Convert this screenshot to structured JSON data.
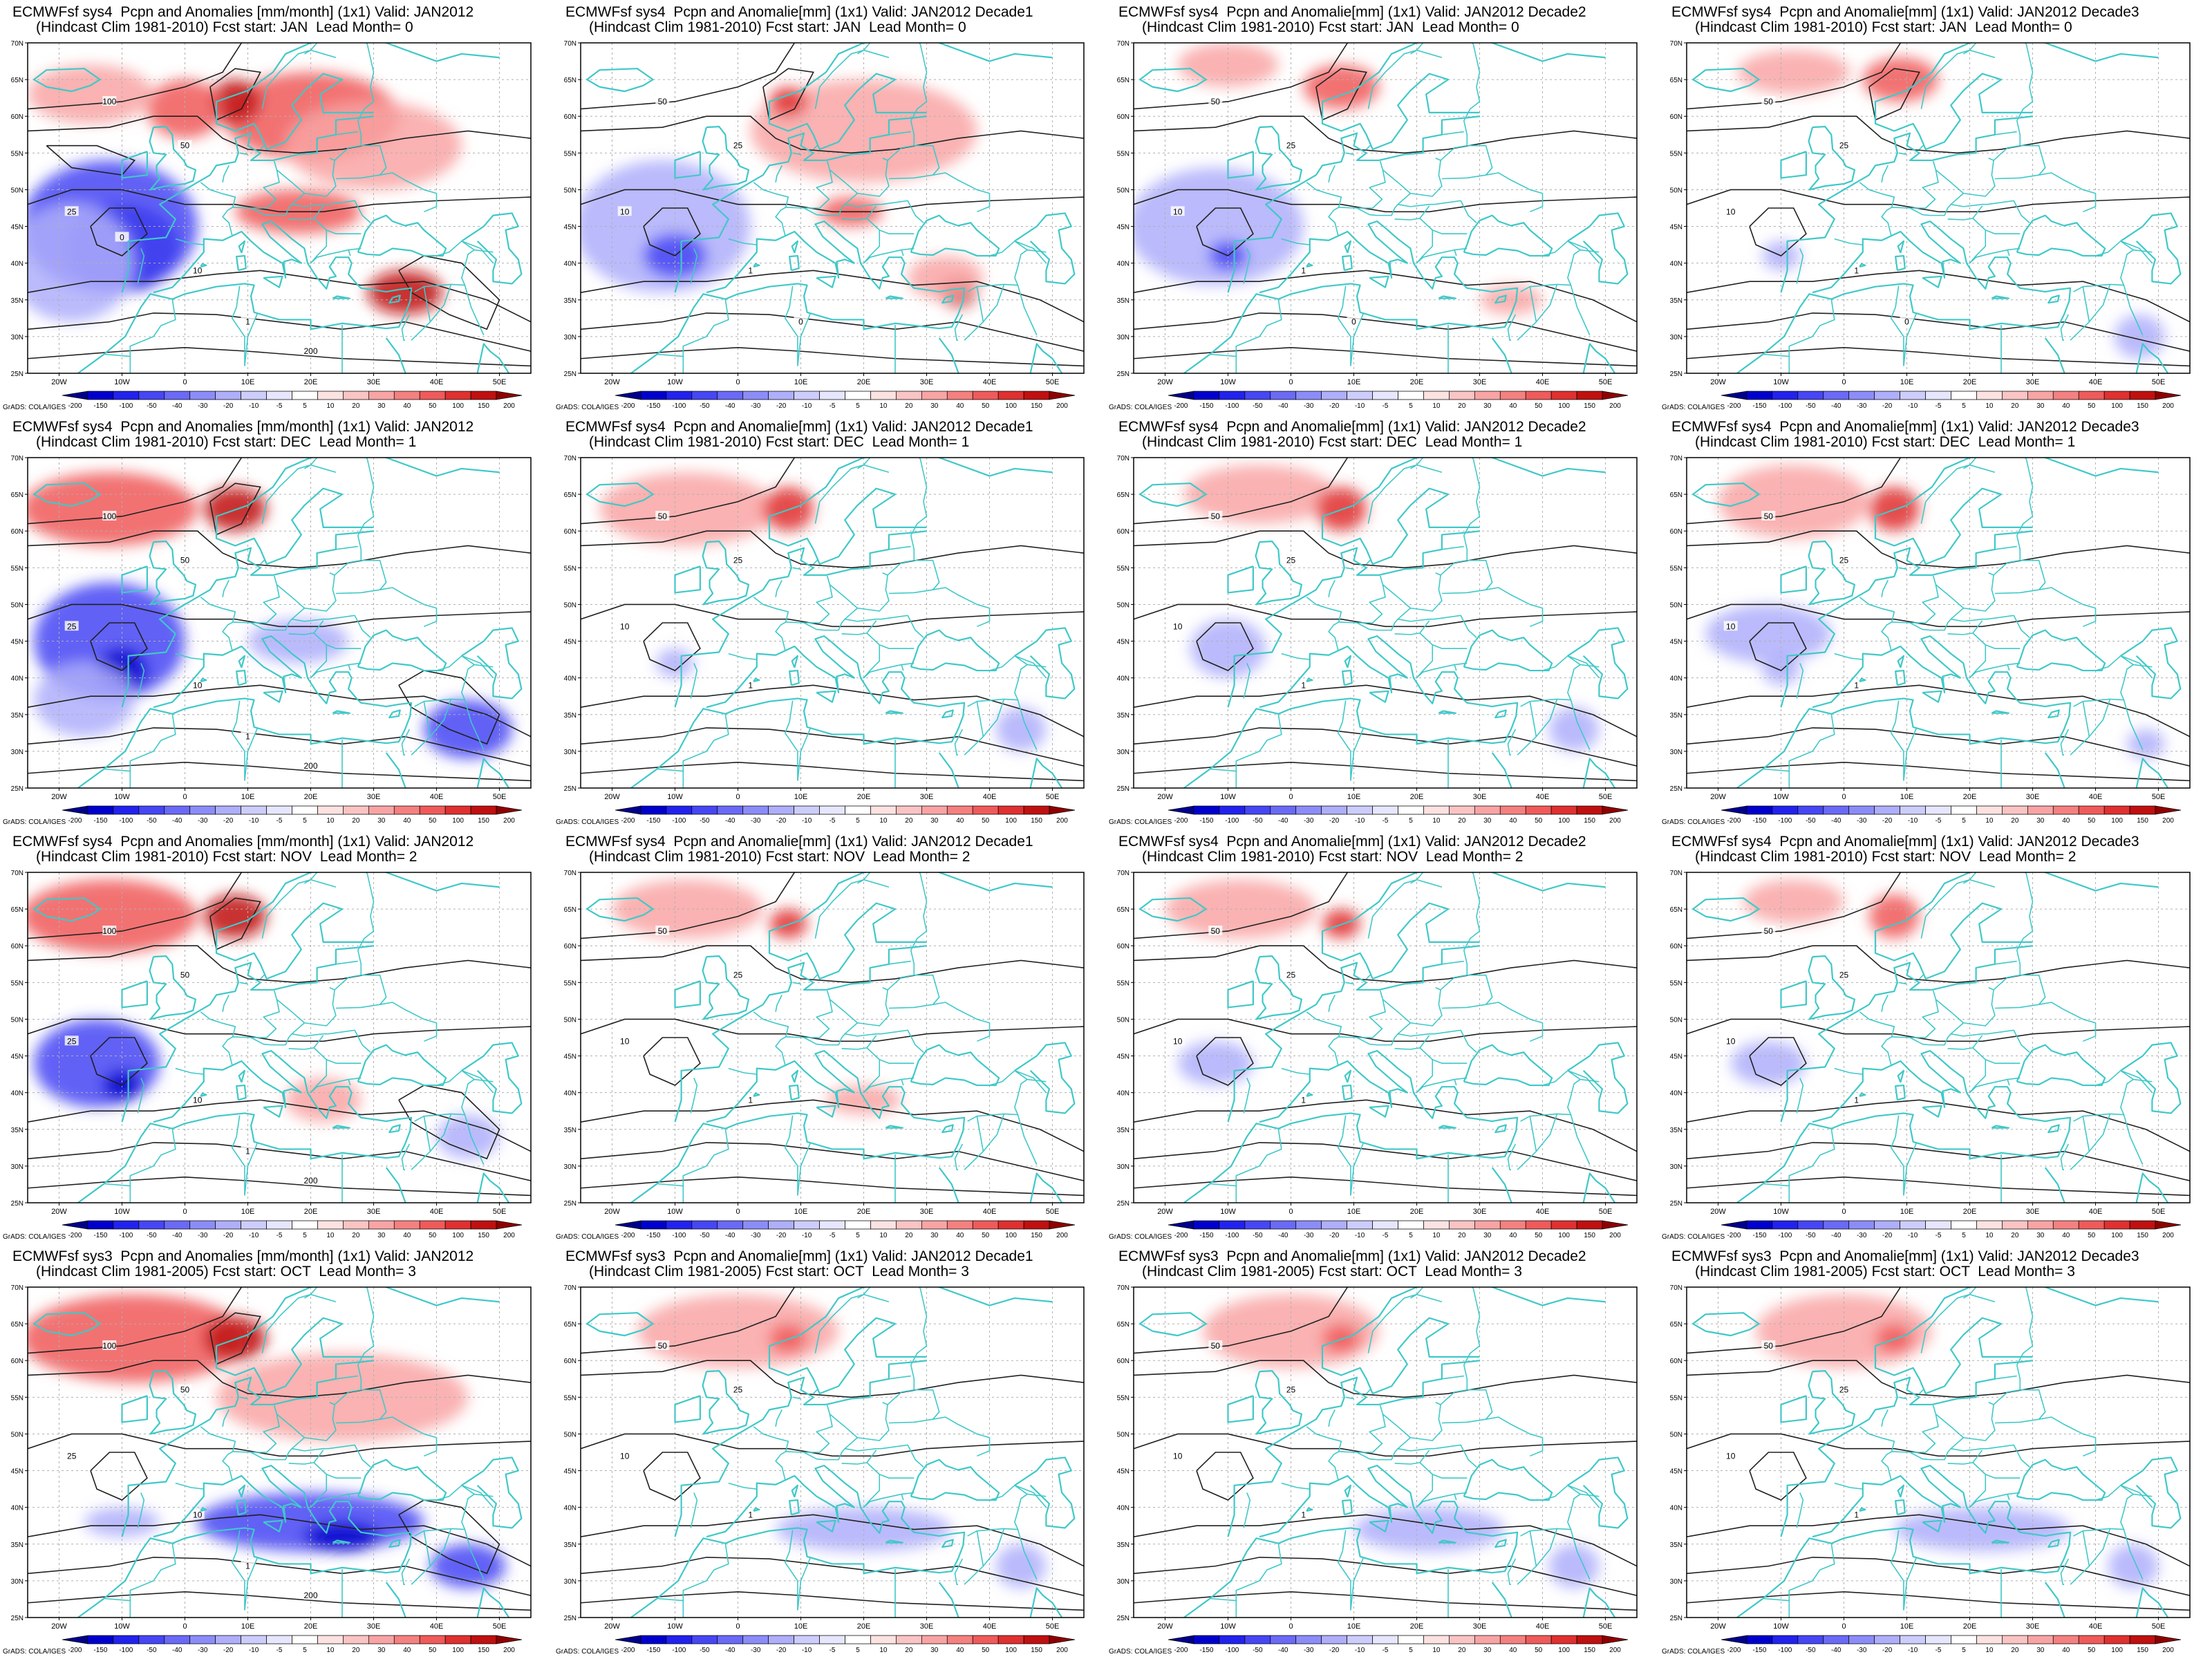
{
  "colorbar": {
    "labels": [
      "-200",
      "-150",
      "-100",
      "-50",
      "-40",
      "-30",
      "-20",
      "-10",
      "-5",
      "5",
      "10",
      "20",
      "30",
      "40",
      "50",
      "100",
      "150",
      "200"
    ],
    "colors": [
      "#00008b",
      "#0000cd",
      "#2222ee",
      "#4646f5",
      "#6a6af7",
      "#8c8cf9",
      "#aeaefb",
      "#cdcdfd",
      "#e6e6fe",
      "#ffffff",
      "#fde2e2",
      "#fbc4c4",
      "#f9a4a4",
      "#f58080",
      "#f05a5a",
      "#e03030",
      "#c01010",
      "#900000"
    ],
    "credit": "GrADS: COLA/IGES"
  },
  "map": {
    "lat_labels": [
      "70N",
      "65N",
      "60N",
      "55N",
      "50N",
      "45N",
      "40N",
      "35N",
      "30N",
      "25N"
    ],
    "lon_labels": [
      "20W",
      "10W",
      "0",
      "10E",
      "20E",
      "30E",
      "40E",
      "50E"
    ],
    "coast_color": "#40c8c8",
    "contour_color": "#202020"
  },
  "panels": [
    {
      "row": 0,
      "col": 0,
      "title1": "ECMWFsf sys4  Pcpn and Anomalies [mm/month] (1x1) Valid: JAN2012",
      "title2": "(Hindcast Clim 1981-2010) Fcst start: JAN  Lead Month= 0",
      "contour_labels": [
        "100",
        "50",
        "25",
        "10",
        "1",
        "200",
        "0"
      ],
      "blobs": [
        {
          "x": -10,
          "y": 42,
          "rx": 9,
          "ry": 6,
          "v": -3
        },
        {
          "x": -12,
          "y": 45,
          "rx": 14,
          "ry": 9,
          "v": -2
        },
        {
          "x": -18,
          "y": 40,
          "rx": 10,
          "ry": 8,
          "v": -1
        },
        {
          "x": 20,
          "y": 60,
          "rx": 14,
          "ry": 6,
          "v": 2
        },
        {
          "x": 8,
          "y": 62,
          "rx": 4,
          "ry": 3,
          "v": 4
        },
        {
          "x": 35,
          "y": 36,
          "rx": 6,
          "ry": 3,
          "v": 4
        },
        {
          "x": 18,
          "y": 47,
          "rx": 10,
          "ry": 3,
          "v": 2
        },
        {
          "x": 0,
          "y": 61,
          "rx": 6,
          "ry": 4,
          "v": 2
        },
        {
          "x": -15,
          "y": 63,
          "rx": 10,
          "ry": 4,
          "v": 1
        },
        {
          "x": 30,
          "y": 56,
          "rx": 14,
          "ry": 6,
          "v": 1
        }
      ]
    },
    {
      "row": 0,
      "col": 1,
      "title1": "ECMWFsf sys4  Pcpn and Anomalie[mm] (1x1) Valid: JAN2012 Decade1",
      "title2": "(Hindcast Clim 1981-2010) Fcst start: JAN  Lead Month= 0",
      "contour_labels": [
        "50",
        "25",
        "10",
        "1",
        "0"
      ],
      "blobs": [
        {
          "x": -12,
          "y": 45,
          "rx": 14,
          "ry": 9,
          "v": -1
        },
        {
          "x": -10,
          "y": 41,
          "rx": 5,
          "ry": 3,
          "v": -2
        },
        {
          "x": 20,
          "y": 58,
          "rx": 18,
          "ry": 7,
          "v": 1
        },
        {
          "x": 8,
          "y": 62,
          "rx": 3,
          "ry": 2,
          "v": 3
        },
        {
          "x": 35,
          "y": 36,
          "rx": 3,
          "ry": 2,
          "v": 4
        },
        {
          "x": 33,
          "y": 38,
          "rx": 6,
          "ry": 3,
          "v": 1
        },
        {
          "x": 18,
          "y": 47,
          "rx": 5,
          "ry": 2,
          "v": 2
        }
      ]
    },
    {
      "row": 0,
      "col": 2,
      "title1": "ECMWFsf sys4  Pcpn and Anomalie[mm] (1x1) Valid: JAN2012 Decade2",
      "title2": "(Hindcast Clim 1981-2010) Fcst start: JAN  Lead Month= 0",
      "contour_labels": [
        "50",
        "25",
        "10",
        "1",
        "0"
      ],
      "blobs": [
        {
          "x": -12,
          "y": 45,
          "rx": 14,
          "ry": 8,
          "v": -1
        },
        {
          "x": -10,
          "y": 41,
          "rx": 3,
          "ry": 2,
          "v": -2
        },
        {
          "x": 8,
          "y": 64,
          "rx": 6,
          "ry": 3,
          "v": 2
        },
        {
          "x": 35,
          "y": 35,
          "rx": 5,
          "ry": 2,
          "v": 1
        },
        {
          "x": -10,
          "y": 67,
          "rx": 8,
          "ry": 3,
          "v": 1
        }
      ]
    },
    {
      "row": 0,
      "col": 3,
      "title1": "ECMWFsf sys4  Pcpn and Anomalie[mm] (1x1) Valid: JAN2012 Decade3",
      "title2": "(Hindcast Clim 1981-2010) Fcst start: JAN  Lead Month= 0",
      "contour_labels": [
        "50",
        "25",
        "10",
        "1",
        "0"
      ],
      "blobs": [
        {
          "x": -10,
          "y": 41,
          "rx": 3,
          "ry": 2,
          "v": -1
        },
        {
          "x": 9,
          "y": 65,
          "rx": 6,
          "ry": 3,
          "v": 2
        },
        {
          "x": -8,
          "y": 66,
          "rx": 9,
          "ry": 3,
          "v": 1
        },
        {
          "x": 47,
          "y": 30,
          "rx": 4,
          "ry": 3,
          "v": -1
        }
      ]
    },
    {
      "row": 1,
      "col": 0,
      "title1": "ECMWFsf sys4  Pcpn and Anomalies [mm/month] (1x1) Valid: JAN2012",
      "title2": "(Hindcast Clim 1981-2010) Fcst start: DEC  Lead Month= 1",
      "contour_labels": [
        "100",
        "50",
        "25",
        "10",
        "1",
        "200"
      ],
      "blobs": [
        {
          "x": -12,
          "y": 63,
          "rx": 14,
          "ry": 5,
          "v": 2
        },
        {
          "x": 8,
          "y": 63,
          "rx": 5,
          "ry": 3,
          "v": 4
        },
        {
          "x": -12,
          "y": 45,
          "rx": 12,
          "ry": 8,
          "v": -2
        },
        {
          "x": -10,
          "y": 41,
          "rx": 4,
          "ry": 3,
          "v": -3
        },
        {
          "x": 45,
          "y": 33,
          "rx": 7,
          "ry": 4,
          "v": -2
        },
        {
          "x": 18,
          "y": 45,
          "rx": 8,
          "ry": 3,
          "v": -1
        },
        {
          "x": -16,
          "y": 37,
          "rx": 8,
          "ry": 5,
          "v": -1
        }
      ]
    },
    {
      "row": 1,
      "col": 1,
      "title1": "ECMWFsf sys4  Pcpn and Anomalie[mm] (1x1) Valid: JAN2012 Decade1",
      "title2": "(Hindcast Clim 1981-2010) Fcst start: DEC  Lead Month= 1",
      "contour_labels": [
        "50",
        "25",
        "10",
        "1"
      ],
      "blobs": [
        {
          "x": -8,
          "y": 63,
          "rx": 14,
          "ry": 5,
          "v": 1
        },
        {
          "x": 8,
          "y": 63,
          "rx": 4,
          "ry": 3,
          "v": 3
        },
        {
          "x": -10,
          "y": 42,
          "rx": 3,
          "ry": 2,
          "v": -1
        },
        {
          "x": 45,
          "y": 33,
          "rx": 4,
          "ry": 3,
          "v": -1
        }
      ]
    },
    {
      "row": 1,
      "col": 2,
      "title1": "ECMWFsf sys4  Pcpn and Anomalie[mm] (1x1) Valid: JAN2012 Decade2",
      "title2": "(Hindcast Clim 1981-2010) Fcst start: DEC  Lead Month= 1",
      "contour_labels": [
        "50",
        "25",
        "10",
        "1"
      ],
      "blobs": [
        {
          "x": -5,
          "y": 65,
          "rx": 12,
          "ry": 4,
          "v": 1
        },
        {
          "x": 8,
          "y": 63,
          "rx": 4,
          "ry": 3,
          "v": 3
        },
        {
          "x": -10,
          "y": 44,
          "rx": 6,
          "ry": 4,
          "v": -1
        },
        {
          "x": 45,
          "y": 33,
          "rx": 4,
          "ry": 3,
          "v": -1
        }
      ]
    },
    {
      "row": 1,
      "col": 3,
      "title1": "ECMWFsf sys4  Pcpn and Anomalie[mm] (1x1) Valid: JAN2012 Decade3",
      "title2": "(Hindcast Clim 1981-2010) Fcst start: DEC  Lead Month= 1",
      "contour_labels": [
        "50",
        "25",
        "10",
        "1"
      ],
      "blobs": [
        {
          "x": -8,
          "y": 64,
          "rx": 12,
          "ry": 5,
          "v": 1
        },
        {
          "x": 8,
          "y": 63,
          "rx": 4,
          "ry": 3,
          "v": 3
        },
        {
          "x": -12,
          "y": 46,
          "rx": 10,
          "ry": 4,
          "v": -1
        },
        {
          "x": -10,
          "y": 41,
          "rx": 3,
          "ry": 2,
          "v": -1
        },
        {
          "x": 48,
          "y": 31,
          "rx": 3,
          "ry": 2,
          "v": -1
        }
      ]
    },
    {
      "row": 2,
      "col": 0,
      "title1": "ECMWFsf sys4  Pcpn and Anomalies [mm/month] (1x1) Valid: JAN2012",
      "title2": "(Hindcast Clim 1981-2010) Fcst start: NOV  Lead Month= 2",
      "contour_labels": [
        "100",
        "50",
        "25",
        "10",
        "1",
        "200"
      ],
      "blobs": [
        {
          "x": -12,
          "y": 64,
          "rx": 14,
          "ry": 5,
          "v": 2
        },
        {
          "x": 8,
          "y": 64,
          "rx": 5,
          "ry": 3,
          "v": 4
        },
        {
          "x": -14,
          "y": 44,
          "rx": 10,
          "ry": 6,
          "v": -2
        },
        {
          "x": -10,
          "y": 41,
          "rx": 3,
          "ry": 2,
          "v": -3
        },
        {
          "x": 22,
          "y": 39,
          "rx": 6,
          "ry": 3,
          "v": 1
        },
        {
          "x": 45,
          "y": 34,
          "rx": 5,
          "ry": 3,
          "v": -1
        }
      ]
    },
    {
      "row": 2,
      "col": 1,
      "title1": "ECMWFsf sys4  Pcpn and Anomalie[mm] (1x1) Valid: JAN2012 Decade1",
      "title2": "(Hindcast Clim 1981-2010) Fcst start: NOV  Lead Month= 2",
      "contour_labels": [
        "50",
        "25",
        "10",
        "1"
      ],
      "blobs": [
        {
          "x": -8,
          "y": 65,
          "rx": 12,
          "ry": 4,
          "v": 1
        },
        {
          "x": 8,
          "y": 63,
          "rx": 3,
          "ry": 2,
          "v": 3
        },
        {
          "x": 20,
          "y": 39,
          "rx": 6,
          "ry": 2,
          "v": 1
        }
      ]
    },
    {
      "row": 2,
      "col": 2,
      "title1": "ECMWFsf sys4  Pcpn and Anomalie[mm] (1x1) Valid: JAN2012 Decade2",
      "title2": "(Hindcast Clim 1981-2010) Fcst start: NOV  Lead Month= 2",
      "contour_labels": [
        "50",
        "25",
        "10",
        "1"
      ],
      "blobs": [
        {
          "x": -8,
          "y": 65,
          "rx": 12,
          "ry": 4,
          "v": 1
        },
        {
          "x": 8,
          "y": 63,
          "rx": 3,
          "ry": 2,
          "v": 3
        },
        {
          "x": -12,
          "y": 44,
          "rx": 6,
          "ry": 3,
          "v": -1
        }
      ]
    },
    {
      "row": 2,
      "col": 3,
      "title1": "ECMWFsf sys4  Pcpn and Anomalie[mm] (1x1) Valid: JAN2012 Decade3",
      "title2": "(Hindcast Clim 1981-2010) Fcst start: NOV  Lead Month= 2",
      "contour_labels": [
        "50",
        "25",
        "10",
        "1"
      ],
      "blobs": [
        {
          "x": 8,
          "y": 64,
          "rx": 4,
          "ry": 3,
          "v": 2
        },
        {
          "x": -8,
          "y": 66,
          "rx": 8,
          "ry": 3,
          "v": 1
        },
        {
          "x": -12,
          "y": 44,
          "rx": 6,
          "ry": 3,
          "v": -1
        }
      ]
    },
    {
      "row": 3,
      "col": 0,
      "title1": "ECMWFsf sys3  Pcpn and Anomalies [mm/month] (1x1) Valid: JAN2012",
      "title2": "(Hindcast Clim 1981-2005) Fcst start: OCT  Lead Month= 3",
      "contour_labels": [
        "100",
        "50",
        "25",
        "10",
        "1",
        "200"
      ],
      "blobs": [
        {
          "x": -8,
          "y": 63,
          "rx": 18,
          "ry": 6,
          "v": 2
        },
        {
          "x": 8,
          "y": 63,
          "rx": 5,
          "ry": 3,
          "v": 4
        },
        {
          "x": 20,
          "y": 38,
          "rx": 18,
          "ry": 4,
          "v": -2
        },
        {
          "x": 25,
          "y": 36,
          "rx": 6,
          "ry": 2,
          "v": -3
        },
        {
          "x": 45,
          "y": 32,
          "rx": 6,
          "ry": 3,
          "v": -2
        },
        {
          "x": -10,
          "y": 38,
          "rx": 6,
          "ry": 2,
          "v": -1
        },
        {
          "x": 25,
          "y": 55,
          "rx": 20,
          "ry": 6,
          "v": 1
        }
      ]
    },
    {
      "row": 3,
      "col": 1,
      "title1": "ECMWFsf sys3  Pcpn and Anomalie[mm] (1x1) Valid: JAN2012 Decade1",
      "title2": "(Hindcast Clim 1981-2005) Fcst start: OCT  Lead Month= 3",
      "contour_labels": [
        "50",
        "25",
        "10",
        "1"
      ],
      "blobs": [
        {
          "x": 0,
          "y": 64,
          "rx": 16,
          "ry": 5,
          "v": 1
        },
        {
          "x": 8,
          "y": 63,
          "rx": 3,
          "ry": 2,
          "v": 2
        },
        {
          "x": 20,
          "y": 37,
          "rx": 14,
          "ry": 3,
          "v": -1
        },
        {
          "x": 45,
          "y": 32,
          "rx": 4,
          "ry": 3,
          "v": -1
        }
      ]
    },
    {
      "row": 3,
      "col": 2,
      "title1": "ECMWFsf sys3  Pcpn and Anomalie[mm] (1x1) Valid: JAN2012 Decade2",
      "title2": "(Hindcast Clim 1981-2005) Fcst start: OCT  Lead Month= 3",
      "contour_labels": [
        "50",
        "25",
        "10",
        "1"
      ],
      "blobs": [
        {
          "x": 0,
          "y": 64,
          "rx": 14,
          "ry": 5,
          "v": 1
        },
        {
          "x": 8,
          "y": 63,
          "rx": 3,
          "ry": 2,
          "v": 2
        },
        {
          "x": 22,
          "y": 37,
          "rx": 12,
          "ry": 3,
          "v": -1
        },
        {
          "x": 45,
          "y": 32,
          "rx": 4,
          "ry": 3,
          "v": -1
        }
      ]
    },
    {
      "row": 3,
      "col": 3,
      "title1": "ECMWFsf sys3  Pcpn and Anomalie[mm] (1x1) Valid: JAN2012 Decade3",
      "title2": "(Hindcast Clim 1981-2005) Fcst start: OCT  Lead Month= 3",
      "contour_labels": [
        "50",
        "25",
        "10",
        "1"
      ],
      "blobs": [
        {
          "x": 0,
          "y": 64,
          "rx": 14,
          "ry": 5,
          "v": 1
        },
        {
          "x": 8,
          "y": 63,
          "rx": 3,
          "ry": 2,
          "v": 2
        },
        {
          "x": 22,
          "y": 37,
          "rx": 14,
          "ry": 3,
          "v": -1
        },
        {
          "x": 46,
          "y": 32,
          "rx": 4,
          "ry": 3,
          "v": -1
        }
      ]
    }
  ]
}
